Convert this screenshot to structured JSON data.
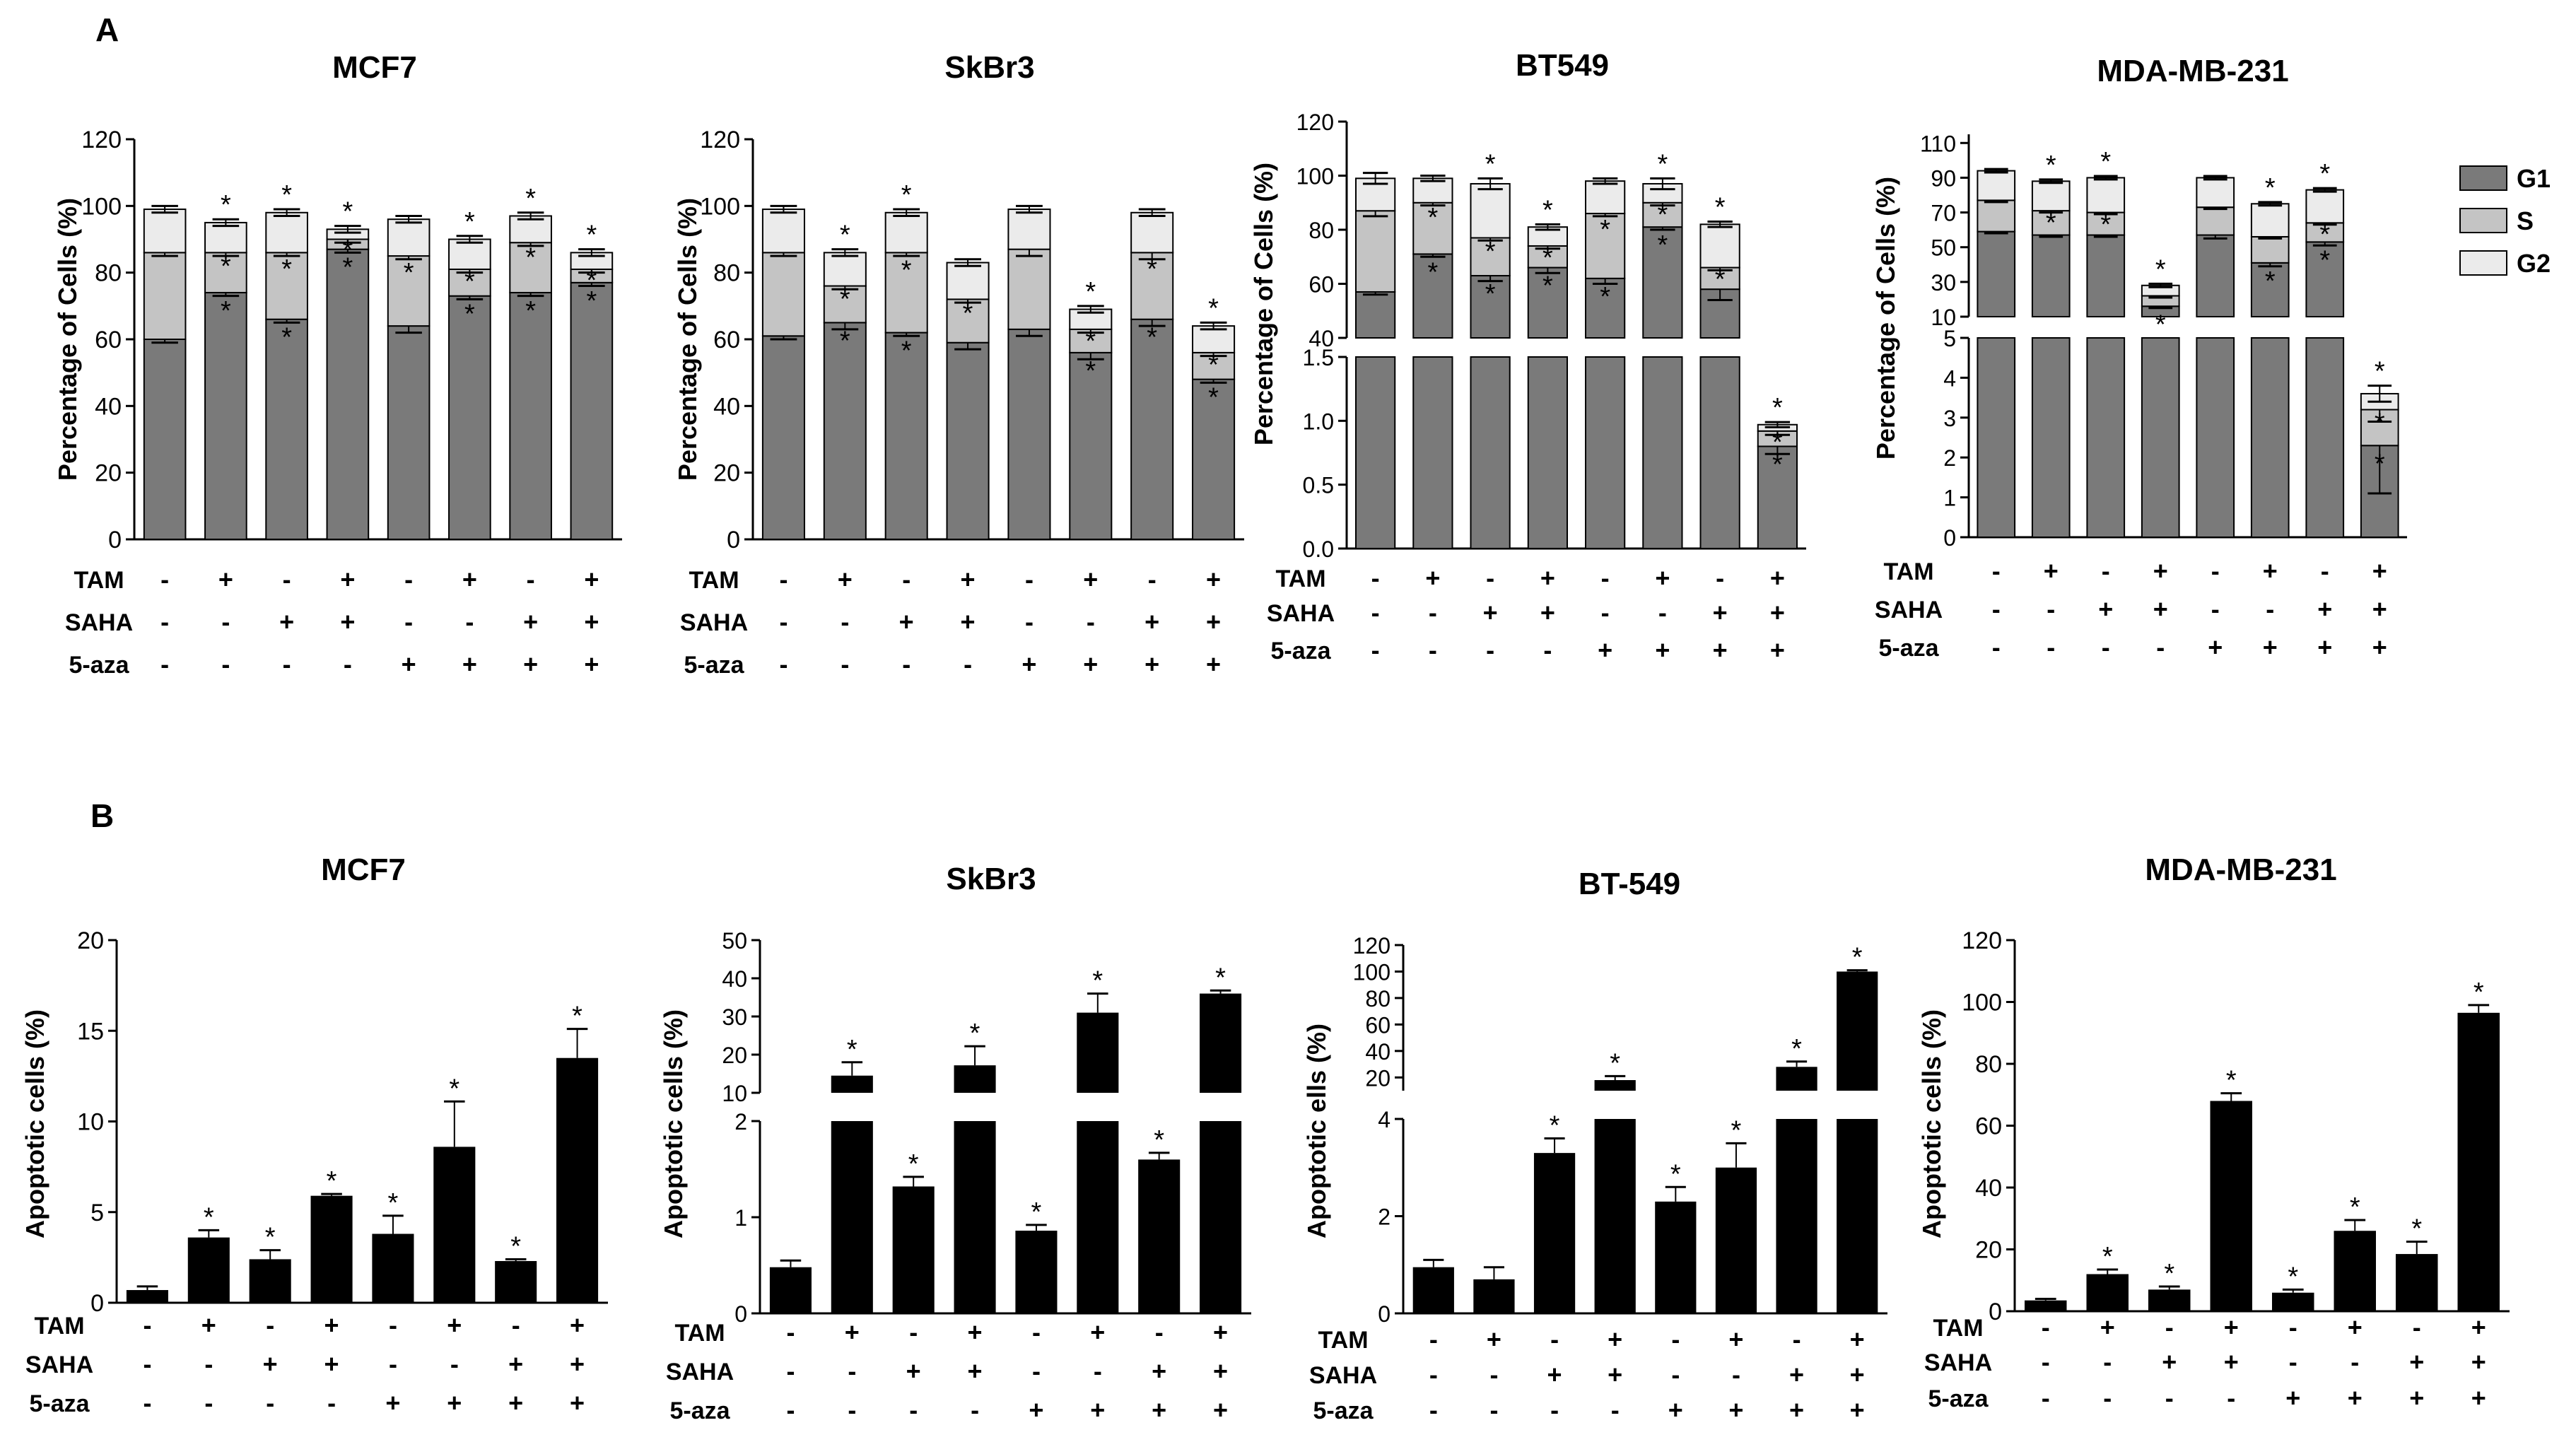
{
  "figure": {
    "panel_labels": [
      "A",
      "B"
    ],
    "treatment_rows": [
      "TAM",
      "SAHA",
      "5-aza"
    ],
    "treatment_signs": {
      "TAM": [
        "-",
        "+",
        "-",
        "+",
        "-",
        "+",
        "-",
        "+"
      ],
      "SAHA": [
        "-",
        "-",
        "+",
        "+",
        "-",
        "-",
        "+",
        "+"
      ],
      "5-aza": [
        "-",
        "-",
        "-",
        "-",
        "+",
        "+",
        "+",
        "+"
      ]
    },
    "significance_marker": "*",
    "colors": {
      "G1": "#7a7a7a",
      "S": "#c4c4c4",
      "G2": "#ebebeb",
      "bar": "#000000",
      "axis": "#000000"
    }
  },
  "legend": [
    "G1",
    "S",
    "G2"
  ],
  "chart_data": [
    {
      "panel": "A",
      "type": "bar",
      "stacked": true,
      "title": "MCF7",
      "ylabel": "Percentage of Cells  (%)",
      "ylim": [
        0,
        120
      ],
      "yticks": [
        "0",
        "20",
        "40",
        "60",
        "80",
        "100",
        "120"
      ],
      "series": [
        {
          "name": "G1",
          "values": [
            60,
            74,
            66,
            87,
            64,
            73,
            74,
            77
          ],
          "errors": [
            1,
            1,
            1,
            1,
            2,
            1,
            1,
            1
          ]
        },
        {
          "name": "S",
          "values": [
            26,
            12,
            20,
            3,
            21,
            8,
            15,
            4
          ],
          "errors": [
            1,
            1,
            1,
            1,
            1,
            1,
            1,
            1
          ]
        },
        {
          "name": "G2",
          "values": [
            13,
            9,
            12,
            3,
            11,
            9,
            8,
            5
          ],
          "errors": [
            1,
            1,
            1,
            1,
            1,
            1,
            1,
            1
          ]
        }
      ],
      "sig": [
        [
          false,
          true,
          true,
          true,
          false,
          true,
          true,
          true
        ],
        [
          false,
          true,
          true,
          true,
          true,
          true,
          true,
          true
        ],
        [
          false,
          true,
          true,
          true,
          false,
          true,
          true,
          true
        ]
      ]
    },
    {
      "panel": "A",
      "type": "bar",
      "stacked": true,
      "title": "SkBr3",
      "ylabel": "Percentage of Cells  (%)",
      "ylim": [
        0,
        120
      ],
      "yticks": [
        "0",
        "20",
        "40",
        "60",
        "80",
        "100",
        "120"
      ],
      "series": [
        {
          "name": "G1",
          "values": [
            61,
            65,
            62,
            59,
            63,
            56,
            66,
            48
          ],
          "errors": [
            1,
            2,
            1,
            2,
            2,
            2,
            2,
            1
          ]
        },
        {
          "name": "S",
          "values": [
            25,
            11,
            24,
            13,
            24,
            7,
            20,
            8
          ],
          "errors": [
            1,
            1,
            1,
            1,
            2,
            1,
            2,
            1
          ]
        },
        {
          "name": "G2",
          "values": [
            13,
            10,
            12,
            11,
            12,
            6,
            12,
            8
          ],
          "errors": [
            1,
            1,
            1,
            1,
            1,
            1,
            1,
            1
          ]
        }
      ],
      "sig": [
        [
          false,
          true,
          true,
          false,
          false,
          true,
          true,
          true
        ],
        [
          false,
          true,
          true,
          true,
          false,
          true,
          true,
          true
        ],
        [
          false,
          true,
          true,
          false,
          false,
          true,
          false,
          true
        ]
      ]
    },
    {
      "panel": "A",
      "type": "bar",
      "stacked": true,
      "broken_axis": true,
      "title": "BT549",
      "ylabel": "Percentage of Cells (%)",
      "upper": {
        "range": [
          40,
          120
        ],
        "ticks": [
          "40",
          "60",
          "80",
          "100",
          "120"
        ]
      },
      "lower": {
        "range": [
          0,
          1.5
        ],
        "ticks": [
          "0.0",
          "0.5",
          "1.0",
          "1.5"
        ]
      },
      "series": [
        {
          "name": "G1",
          "values": [
            57,
            71,
            63,
            66,
            62,
            81,
            58,
            0.8
          ],
          "errors": [
            1,
            1,
            2,
            2,
            2,
            1,
            4,
            0.06
          ]
        },
        {
          "name": "S",
          "values": [
            30,
            19,
            14,
            8,
            24,
            9,
            8,
            0.12
          ],
          "errors": [
            2,
            1,
            1,
            1,
            1,
            1,
            1,
            0.03
          ]
        },
        {
          "name": "G2",
          "values": [
            12,
            9,
            20,
            7,
            12,
            7,
            16,
            0.05
          ],
          "errors": [
            2,
            1,
            2,
            1,
            1,
            2,
            1,
            0.02
          ]
        }
      ],
      "sig": [
        [
          false,
          true,
          true,
          true,
          true,
          true,
          false,
          true
        ],
        [
          false,
          true,
          true,
          true,
          true,
          true,
          true,
          true
        ],
        [
          false,
          false,
          true,
          true,
          false,
          true,
          true,
          true
        ]
      ]
    },
    {
      "panel": "A",
      "type": "bar",
      "stacked": true,
      "broken_axis": true,
      "title": "MDA-MB-231",
      "ylabel": "Percentage of Cells  (%)",
      "upper": {
        "range": [
          10,
          115
        ],
        "ticks": [
          "10",
          "30",
          "50",
          "70",
          "90",
          "110"
        ]
      },
      "lower": {
        "range": [
          0,
          5
        ],
        "ticks": [
          "0",
          "1",
          "2",
          "3",
          "4",
          "5"
        ]
      },
      "series": [
        {
          "name": "G1",
          "values": [
            59,
            57,
            57,
            16,
            57,
            41,
            53,
            2.3
          ],
          "errors": [
            1,
            1,
            1,
            1,
            2,
            2,
            2,
            1.2
          ]
        },
        {
          "name": "S",
          "values": [
            18,
            14,
            13,
            6,
            16,
            15,
            11,
            0.9
          ],
          "errors": [
            1,
            1,
            1,
            1,
            1,
            1,
            1,
            0.3
          ]
        },
        {
          "name": "G2",
          "values": [
            17,
            17,
            20,
            6,
            17,
            19,
            19,
            0.4
          ],
          "errors": [
            1,
            1,
            1,
            1,
            1,
            1,
            1,
            0.2
          ]
        }
      ],
      "sig": [
        [
          false,
          false,
          false,
          true,
          false,
          true,
          true,
          true
        ],
        [
          false,
          true,
          true,
          false,
          false,
          false,
          true,
          true
        ],
        [
          false,
          true,
          true,
          true,
          false,
          true,
          true,
          true
        ]
      ]
    },
    {
      "panel": "B",
      "type": "bar",
      "title": "MCF7",
      "ylabel": "Apoptotic cells (%)",
      "ylim": [
        0,
        20
      ],
      "yticks": [
        "0",
        "5",
        "10",
        "15",
        "20"
      ],
      "values": [
        0.7,
        3.6,
        2.4,
        5.9,
        3.8,
        8.6,
        2.3,
        13.5
      ],
      "errors": [
        0.2,
        0.4,
        0.5,
        0.1,
        1.0,
        2.5,
        0.1,
        1.6
      ],
      "sig": [
        false,
        true,
        true,
        true,
        true,
        true,
        true,
        true
      ]
    },
    {
      "panel": "B",
      "type": "bar",
      "broken_axis": true,
      "title": "SkBr3",
      "ylabel": "Apoptotic cells (%)",
      "upper": {
        "range": [
          10,
          50
        ],
        "ticks": [
          "10",
          "20",
          "30",
          "40",
          "50"
        ]
      },
      "lower": {
        "range": [
          0,
          2
        ],
        "ticks": [
          "0",
          "1",
          "2"
        ]
      },
      "values": [
        0.48,
        14.5,
        1.32,
        17.2,
        0.86,
        31,
        1.6,
        36
      ],
      "errors": [
        0.07,
        3.5,
        0.1,
        5,
        0.06,
        5,
        0.07,
        0.8
      ],
      "sig": [
        false,
        true,
        true,
        true,
        true,
        true,
        true,
        true
      ]
    },
    {
      "panel": "B",
      "type": "bar",
      "broken_axis": true,
      "title": "BT-549",
      "ylabel": "Apoptotic ells (%)",
      "upper": {
        "range": [
          10,
          120
        ],
        "ticks": [
          "20",
          "40",
          "60",
          "80",
          "100",
          "120"
        ]
      },
      "lower": {
        "range": [
          0,
          4
        ],
        "ticks": [
          "0",
          "2",
          "4"
        ]
      },
      "values": [
        0.95,
        0.7,
        3.3,
        18,
        2.3,
        3.0,
        28,
        100
      ],
      "errors": [
        0.15,
        0.25,
        0.3,
        3,
        0.3,
        0.5,
        4,
        1
      ],
      "sig": [
        false,
        false,
        true,
        true,
        true,
        true,
        true,
        true
      ]
    },
    {
      "panel": "B",
      "type": "bar",
      "title": "MDA-MB-231",
      "ylabel": "Apoptotic cells (%)",
      "ylim": [
        0,
        120
      ],
      "yticks": [
        "0",
        "20",
        "40",
        "60",
        "80",
        "100",
        "120"
      ],
      "values": [
        3.5,
        12,
        7,
        68,
        6,
        26,
        18.5,
        96.5
      ],
      "errors": [
        0.5,
        1.5,
        1,
        2.5,
        1,
        3.5,
        4,
        2.5
      ],
      "sig": [
        false,
        true,
        true,
        true,
        true,
        true,
        true,
        true
      ]
    }
  ]
}
